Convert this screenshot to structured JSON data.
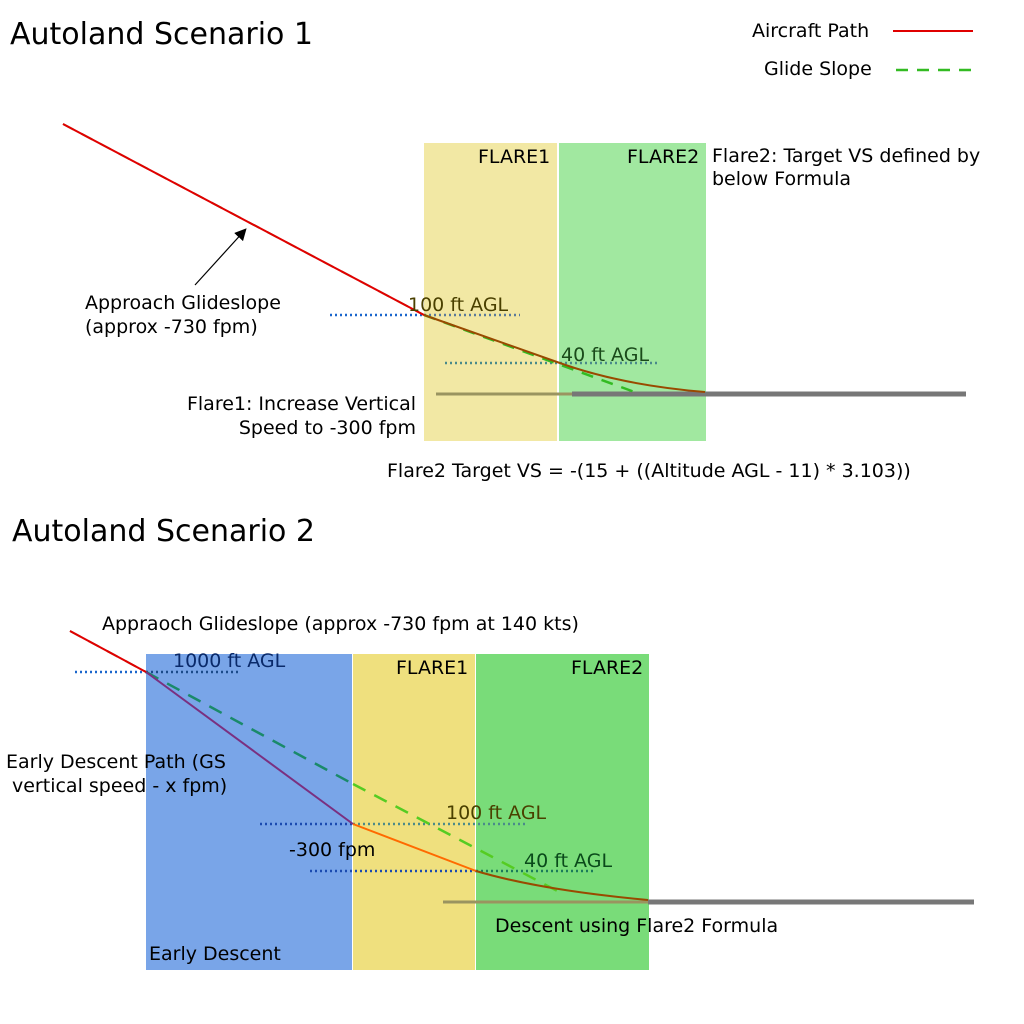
{
  "scenario1": {
    "title": "Autoland Scenario 1",
    "legend": {
      "aircraft_path_label": "Aircraft Path",
      "glide_slope_label": "Glide Slope"
    },
    "zones": {
      "flare1": "FLARE1",
      "flare2": "FLARE2"
    },
    "flare2_note_line1": "Flare2: Target VS defined by",
    "flare2_note_line2": "below Formula",
    "glideslope_label_line1": "Approach Glideslope",
    "glideslope_label_line2": "(approx -730 fpm)",
    "alt_100": "100 ft AGL",
    "alt_40": "40 ft AGL",
    "flare1_note_line1": "Flare1: Increase Vertical",
    "flare1_note_line2": "Speed to -300 fpm",
    "formula": "Flare2 Target VS = -(15 + ((Altitude AGL - 11) * 3.103))"
  },
  "scenario2": {
    "title": "Autoland Scenario 2",
    "glideslope_label": "Appraoch Glideslope (approx -730 fpm at 140 kts)",
    "zones": {
      "early": "Early Descent",
      "flare1": "FLARE1",
      "flare2": "FLARE2"
    },
    "alt_1000": "1000 ft AGL",
    "early_path_line1": "Early Descent Path (GS",
    "early_path_line2": "vertical speed - x fpm)",
    "alt_100": "100 ft AGL",
    "vs_300": "-300 fpm",
    "alt_40": "40 ft AGL",
    "flare2_descent": "Descent using Flare2 Formula"
  },
  "colors": {
    "aircraft_path": "#e00000",
    "glide_slope": "#33bb22",
    "flare1_zone": "#f2e8a4",
    "flare2_zone": "#a1e8a0",
    "early_zone": "#79a5e8",
    "runway": "#777777"
  }
}
